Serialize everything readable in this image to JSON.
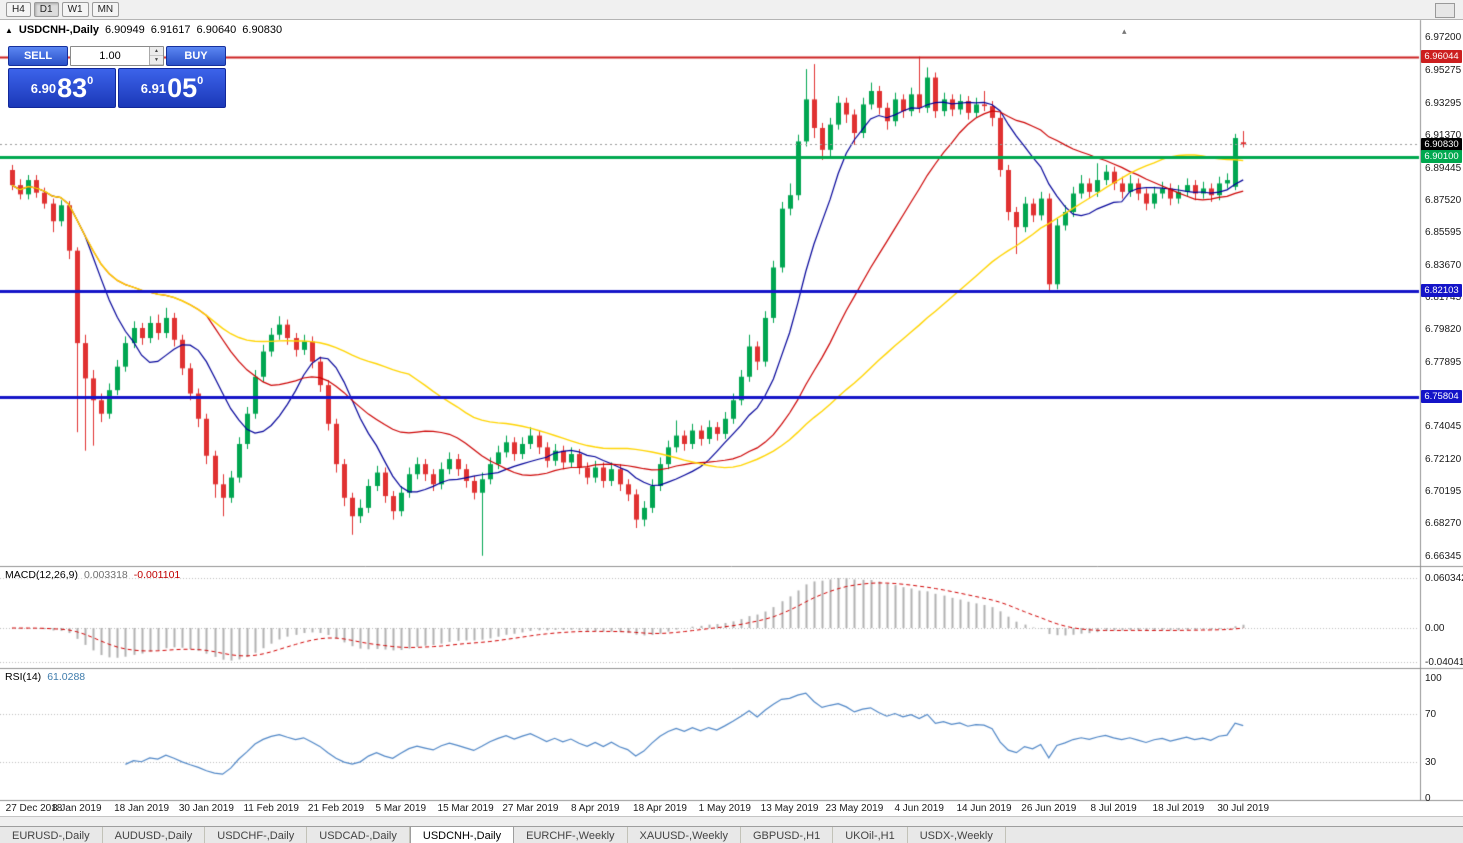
{
  "toolbar": {
    "timeframes": [
      "H4",
      "D1",
      "W1",
      "MN"
    ],
    "active": "D1"
  },
  "icons": {
    "chart": "▲",
    "collapse": "▴",
    "spin_up": "▲",
    "spin_down": "▼"
  },
  "chart": {
    "title": {
      "symbol": "USDCNH-,Daily",
      "open": "6.90949",
      "high": "6.91617",
      "low": "6.90640",
      "close": "6.90830"
    },
    "trade_panel": {
      "sell_label": "SELL",
      "buy_label": "BUY",
      "volume": "1.00",
      "sell_price": {
        "prefix": "6.90",
        "big": "83",
        "sup": "0"
      },
      "buy_price": {
        "prefix": "6.91",
        "big": "05",
        "sup": "0"
      }
    }
  },
  "chart_data": {
    "type": "candlestick",
    "symbol": "USDCNH",
    "timeframe": "Daily",
    "price_axis_labels": [
      "6.97200",
      "6.95275",
      "6.93295",
      "6.91370",
      "6.89445",
      "6.87520",
      "6.85595",
      "6.83670",
      "6.81745",
      "6.79820",
      "6.77895",
      "6.75970",
      "6.74045",
      "6.72120",
      "6.70195",
      "6.68270",
      "6.66345"
    ],
    "hlines": [
      {
        "price": 6.96044,
        "label": "6.96044",
        "color": "#cc1f1f",
        "width": 2,
        "style": "solid"
      },
      {
        "price": 6.9083,
        "label": "6.90830",
        "color": "#000000",
        "line_color": "#999999",
        "width": 1,
        "style": "dotted"
      },
      {
        "price": 6.901,
        "label": "6.90100",
        "color": "#00a84f",
        "width": 3,
        "style": "solid"
      },
      {
        "price": 6.82103,
        "label": "6.82103",
        "color": "#1414c8",
        "width": 3,
        "style": "solid"
      },
      {
        "price": 6.75804,
        "label": "6.75804",
        "color": "#1414c8",
        "width": 3,
        "style": "solid"
      }
    ],
    "date_labels": [
      "27 Dec 2018",
      "8 Jan 2019",
      "18 Jan 2019",
      "30 Jan 2019",
      "11 Feb 2019",
      "21 Feb 2019",
      "5 Mar 2019",
      "15 Mar 2019",
      "27 Mar 2019",
      "8 Apr 2019",
      "18 Apr 2019",
      "1 May 2019",
      "13 May 2019",
      "23 May 2019",
      "4 Jun 2019",
      "14 Jun 2019",
      "26 Jun 2019",
      "8 Jul 2019",
      "18 Jul 2019",
      "30 Jul 2019"
    ],
    "label_every": 8,
    "candles": [
      [
        6.893,
        6.896,
        6.881,
        6.884
      ],
      [
        6.884,
        6.8875,
        6.8755,
        6.8785
      ],
      [
        6.8785,
        6.89,
        6.8755,
        6.887
      ],
      [
        6.887,
        6.89,
        6.8765,
        6.8795
      ],
      [
        6.8795,
        6.8825,
        6.87,
        6.873
      ],
      [
        6.873,
        6.876,
        6.856,
        6.8625
      ],
      [
        6.8625,
        6.875,
        6.8595,
        6.872
      ],
      [
        6.872,
        6.8745,
        6.84,
        6.845
      ],
      [
        6.845,
        6.847,
        6.737,
        6.79
      ],
      [
        6.79,
        6.795,
        6.726,
        6.769
      ],
      [
        6.769,
        6.774,
        6.729,
        6.756
      ],
      [
        6.756,
        6.76,
        6.743,
        6.748
      ],
      [
        6.748,
        6.766,
        6.745,
        6.762
      ],
      [
        6.762,
        6.78,
        6.759,
        6.776
      ],
      [
        6.776,
        6.794,
        6.773,
        6.79
      ],
      [
        6.79,
        6.803,
        6.787,
        6.799
      ],
      [
        6.799,
        6.802,
        6.789,
        6.793
      ],
      [
        6.793,
        6.806,
        6.79,
        6.802
      ],
      [
        6.802,
        6.807,
        6.792,
        6.796
      ],
      [
        6.796,
        6.811,
        6.793,
        6.805
      ],
      [
        6.805,
        6.808,
        6.788,
        6.792
      ],
      [
        6.792,
        6.795,
        6.771,
        6.775
      ],
      [
        6.775,
        6.778,
        6.756,
        6.76
      ],
      [
        6.76,
        6.763,
        6.74,
        6.745
      ],
      [
        6.745,
        6.748,
        6.718,
        6.723
      ],
      [
        6.723,
        6.726,
        6.698,
        6.706
      ],
      [
        6.706,
        6.712,
        6.687,
        6.698
      ],
      [
        6.698,
        6.714,
        6.695,
        6.71
      ],
      [
        6.71,
        6.734,
        6.707,
        6.73
      ],
      [
        6.73,
        6.752,
        6.727,
        6.748
      ],
      [
        6.748,
        6.774,
        6.745,
        6.77
      ],
      [
        6.77,
        6.789,
        6.767,
        6.785
      ],
      [
        6.785,
        6.799,
        6.782,
        6.795
      ],
      [
        6.795,
        6.806,
        6.792,
        6.801
      ],
      [
        6.801,
        6.804,
        6.789,
        6.793
      ],
      [
        6.793,
        6.796,
        6.782,
        6.786
      ],
      [
        6.786,
        6.795,
        6.783,
        6.791
      ],
      [
        6.791,
        6.794,
        6.775,
        6.779
      ],
      [
        6.779,
        6.782,
        6.761,
        6.765
      ],
      [
        6.765,
        6.768,
        6.738,
        6.742
      ],
      [
        6.742,
        6.745,
        6.713,
        6.718
      ],
      [
        6.718,
        6.721,
        6.693,
        6.698
      ],
      [
        6.698,
        6.701,
        6.676,
        6.687
      ],
      [
        6.687,
        6.697,
        6.683,
        6.692
      ],
      [
        6.692,
        6.709,
        6.689,
        6.705
      ],
      [
        6.705,
        6.717,
        6.702,
        6.713
      ],
      [
        6.713,
        6.716,
        6.695,
        6.699
      ],
      [
        6.699,
        6.702,
        6.685,
        6.69
      ],
      [
        6.69,
        6.705,
        6.687,
        6.701
      ],
      [
        6.701,
        6.716,
        6.698,
        6.712
      ],
      [
        6.712,
        6.722,
        6.709,
        6.718
      ],
      [
        6.718,
        6.721,
        6.708,
        6.712
      ],
      [
        6.712,
        6.715,
        6.702,
        6.706
      ],
      [
        6.706,
        6.719,
        6.703,
        6.715
      ],
      [
        6.715,
        6.725,
        6.712,
        6.721
      ],
      [
        6.721,
        6.724,
        6.711,
        6.715
      ],
      [
        6.715,
        6.718,
        6.704,
        6.708
      ],
      [
        6.708,
        6.711,
        6.697,
        6.701
      ],
      [
        6.701,
        6.713,
        6.6635,
        6.709
      ],
      [
        6.709,
        6.722,
        6.706,
        6.718
      ],
      [
        6.718,
        6.729,
        6.715,
        6.725
      ],
      [
        6.725,
        6.735,
        6.722,
        6.731
      ],
      [
        6.731,
        6.734,
        6.72,
        6.724
      ],
      [
        6.724,
        6.734,
        6.721,
        6.73
      ],
      [
        6.73,
        6.74,
        6.727,
        6.735
      ],
      [
        6.735,
        6.738,
        6.724,
        6.728
      ],
      [
        6.728,
        6.731,
        6.716,
        6.72
      ],
      [
        6.72,
        6.73,
        6.717,
        6.726
      ],
      [
        6.726,
        6.729,
        6.715,
        6.719
      ],
      [
        6.719,
        6.728,
        6.716,
        6.724
      ],
      [
        6.724,
        6.727,
        6.712,
        6.716
      ],
      [
        6.716,
        6.719,
        6.706,
        6.71
      ],
      [
        6.71,
        6.72,
        6.707,
        6.716
      ],
      [
        6.716,
        6.719,
        6.704,
        6.708
      ],
      [
        6.708,
        6.719,
        6.705,
        6.715
      ],
      [
        6.715,
        6.718,
        6.702,
        6.706
      ],
      [
        6.706,
        6.709,
        6.696,
        6.7
      ],
      [
        6.7,
        6.703,
        6.68,
        6.685
      ],
      [
        6.685,
        6.696,
        6.681,
        6.692
      ],
      [
        6.692,
        6.709,
        6.689,
        6.705
      ],
      [
        6.705,
        6.722,
        6.702,
        6.718
      ],
      [
        6.718,
        6.732,
        6.715,
        6.728
      ],
      [
        6.728,
        6.744,
        6.725,
        6.735
      ],
      [
        6.735,
        6.738,
        6.726,
        6.73
      ],
      [
        6.73,
        6.742,
        6.727,
        6.738
      ],
      [
        6.738,
        6.741,
        6.729,
        6.733
      ],
      [
        6.733,
        6.744,
        6.73,
        6.74
      ],
      [
        6.74,
        6.743,
        6.732,
        6.736
      ],
      [
        6.736,
        6.749,
        6.733,
        6.745
      ],
      [
        6.745,
        6.76,
        6.742,
        6.756
      ],
      [
        6.756,
        6.774,
        6.753,
        6.77
      ],
      [
        6.77,
        6.795,
        6.767,
        6.788
      ],
      [
        6.788,
        6.791,
        6.774,
        6.779
      ],
      [
        6.779,
        6.809,
        6.776,
        6.805
      ],
      [
        6.805,
        6.839,
        6.802,
        6.835
      ],
      [
        6.835,
        6.874,
        6.832,
        6.87
      ],
      [
        6.87,
        6.885,
        6.866,
        6.878
      ],
      [
        6.878,
        6.914,
        6.875,
        6.91
      ],
      [
        6.91,
        6.953,
        6.907,
        6.935
      ],
      [
        6.935,
        6.956,
        6.912,
        6.918
      ],
      [
        6.918,
        6.921,
        6.899,
        6.905
      ],
      [
        6.905,
        6.924,
        6.901,
        6.92
      ],
      [
        6.92,
        6.937,
        6.917,
        6.933
      ],
      [
        6.933,
        6.936,
        6.921,
        6.926
      ],
      [
        6.926,
        6.929,
        6.908,
        6.915
      ],
      [
        6.915,
        6.936,
        6.912,
        6.932
      ],
      [
        6.932,
        6.945,
        6.929,
        6.94
      ],
      [
        6.94,
        6.943,
        6.926,
        6.93
      ],
      [
        6.93,
        6.933,
        6.917,
        6.922
      ],
      [
        6.922,
        6.939,
        6.919,
        6.935
      ],
      [
        6.935,
        6.938,
        6.924,
        6.928
      ],
      [
        6.928,
        6.942,
        6.925,
        6.938
      ],
      [
        6.938,
        6.9605,
        6.927,
        6.93
      ],
      [
        6.93,
        6.954,
        6.927,
        6.948
      ],
      [
        6.948,
        6.951,
        6.924,
        6.928
      ],
      [
        6.928,
        6.939,
        6.925,
        6.935
      ],
      [
        6.935,
        6.938,
        6.925,
        6.929
      ],
      [
        6.929,
        6.938,
        6.926,
        6.934
      ],
      [
        6.934,
        6.937,
        6.923,
        6.927
      ],
      [
        6.927,
        6.936,
        6.924,
        6.932
      ],
      [
        6.932,
        6.94,
        6.928,
        6.931
      ],
      [
        6.931,
        6.934,
        6.919,
        6.924
      ],
      [
        6.924,
        6.927,
        6.889,
        6.893
      ],
      [
        6.893,
        6.896,
        6.863,
        6.868
      ],
      [
        6.868,
        6.871,
        6.843,
        6.859
      ],
      [
        6.859,
        6.877,
        6.856,
        6.873
      ],
      [
        6.873,
        6.876,
        6.862,
        6.866
      ],
      [
        6.866,
        6.88,
        6.863,
        6.876
      ],
      [
        6.876,
        6.879,
        6.8215,
        6.825
      ],
      [
        6.825,
        6.864,
        6.822,
        6.86
      ],
      [
        6.86,
        6.872,
        6.857,
        6.868
      ],
      [
        6.868,
        6.883,
        6.865,
        6.879
      ],
      [
        6.879,
        6.89,
        6.876,
        6.885
      ],
      [
        6.885,
        6.888,
        6.876,
        6.88
      ],
      [
        6.88,
        6.897,
        6.877,
        6.887
      ],
      [
        6.887,
        6.896,
        6.884,
        6.892
      ],
      [
        6.892,
        6.895,
        6.881,
        6.885
      ],
      [
        6.885,
        6.889,
        6.876,
        6.88
      ],
      [
        6.88,
        6.89,
        6.877,
        6.885
      ],
      [
        6.885,
        6.888,
        6.875,
        6.879
      ],
      [
        6.879,
        6.882,
        6.869,
        6.873
      ],
      [
        6.873,
        6.883,
        6.87,
        6.879
      ],
      [
        6.879,
        6.886,
        6.876,
        6.882
      ],
      [
        6.882,
        6.885,
        6.872,
        6.876
      ],
      [
        6.876,
        6.884,
        6.873,
        6.88
      ],
      [
        6.88,
        6.888,
        6.877,
        6.884
      ],
      [
        6.884,
        6.887,
        6.875,
        6.879
      ],
      [
        6.879,
        6.886,
        6.876,
        6.882
      ],
      [
        6.882,
        6.885,
        6.874,
        6.878
      ],
      [
        6.878,
        6.889,
        6.875,
        6.885
      ],
      [
        6.885,
        6.891,
        6.882,
        6.887
      ],
      [
        6.883,
        6.9145,
        6.881,
        6.912
      ],
      [
        6.90949,
        6.91617,
        6.9064,
        6.9083
      ]
    ],
    "moving_averages": [
      {
        "period": 10,
        "color": "#000099"
      },
      {
        "period": 25,
        "color": "#cc0000"
      },
      {
        "period": 50,
        "color": "#ffd400"
      }
    ],
    "macd": {
      "title": "MACD(12,26,9)",
      "main_value": "0.003318",
      "signal_value": "-0.001101",
      "axis_labels": [
        "0.060342",
        "0.00",
        "-0.040415"
      ],
      "params": [
        12,
        26,
        9
      ]
    },
    "rsi": {
      "title": "RSI(14)",
      "value": "61.0288",
      "axis_labels": [
        "100",
        "70",
        "30",
        "0"
      ],
      "levels": [
        70,
        30
      ],
      "period": 14
    },
    "colors": {
      "bull": "#00A651",
      "bear": "#E03131",
      "macd_hist": "#b2b2b2",
      "macd_signal": "#d00000",
      "rsi_line": "#4f86c6",
      "grid_dotted": "#bbbbbb",
      "separator": "#909090"
    }
  },
  "tabs": {
    "items": [
      "EURUSD-,Daily",
      "AUDUSD-,Daily",
      "USDCHF-,Daily",
      "USDCAD-,Daily",
      "USDCNH-,Daily",
      "EURCHF-,Weekly",
      "XAUUSD-,Weekly",
      "GBPUSD-,H1",
      "UKOil-,H1",
      "USDX-,Weekly"
    ],
    "active_index": 4
  }
}
